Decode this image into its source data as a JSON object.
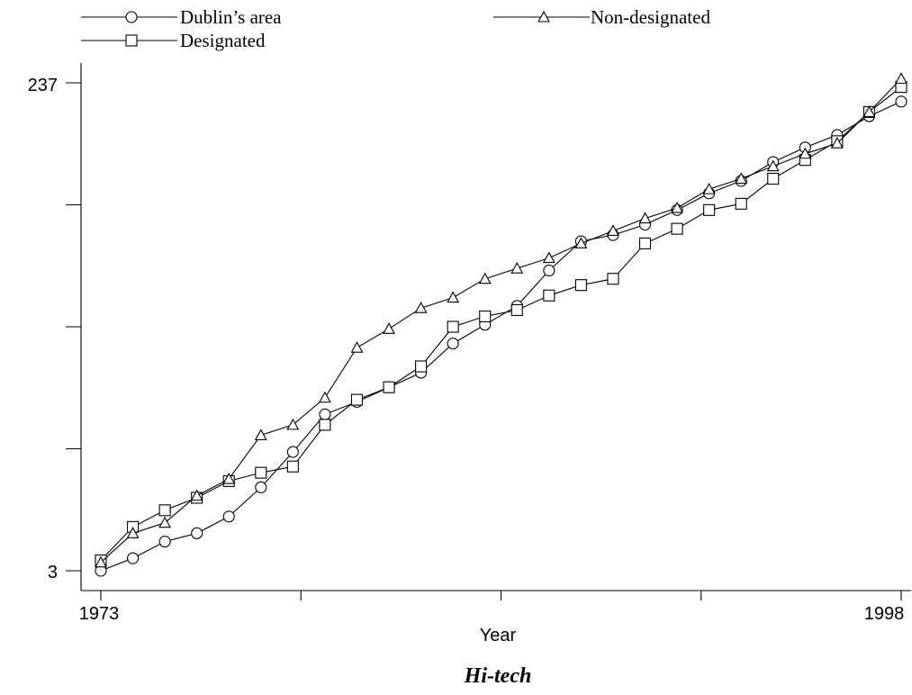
{
  "chart_data": {
    "type": "line",
    "caption": "Hi-tech",
    "xlabel": "Year",
    "ylabel": "",
    "x": [
      1973,
      1974,
      1975,
      1976,
      1977,
      1978,
      1979,
      1980,
      1981,
      1982,
      1983,
      1984,
      1985,
      1986,
      1987,
      1988,
      1989,
      1990,
      1991,
      1992,
      1993,
      1994,
      1995,
      1996,
      1997,
      1998
    ],
    "xlim": [
      1973,
      1998
    ],
    "ylim": [
      3,
      237
    ],
    "x_tick_labels": [
      "1973",
      "1998"
    ],
    "y_tick_labels": [
      "3",
      "237"
    ],
    "series": [
      {
        "name": "Dublin’s area",
        "marker": "circle",
        "values": [
          3,
          9,
          17,
          21,
          29,
          43,
          60,
          78,
          84,
          91,
          98,
          112,
          121,
          130,
          147,
          161,
          164,
          169,
          176,
          184,
          190,
          199,
          206,
          212,
          221,
          228
        ]
      },
      {
        "name": "Designated",
        "marker": "square",
        "values": [
          8,
          24,
          32,
          38,
          46,
          50,
          53,
          73,
          85,
          91,
          101,
          120,
          125,
          128,
          135,
          140,
          143,
          160,
          167,
          176,
          179,
          191,
          200,
          209,
          223,
          235
        ]
      },
      {
        "name": "Non-designated",
        "marker": "triangle",
        "values": [
          7,
          21,
          26,
          39,
          47,
          68,
          73,
          86,
          110,
          119,
          129,
          134,
          143,
          148,
          153,
          160,
          166,
          172,
          177,
          186,
          191,
          197,
          203,
          208,
          223,
          239
        ]
      }
    ],
    "legend": {
      "placement": "top",
      "entries": [
        "Dublin’s area",
        "Designated",
        "Non-designated"
      ]
    }
  }
}
